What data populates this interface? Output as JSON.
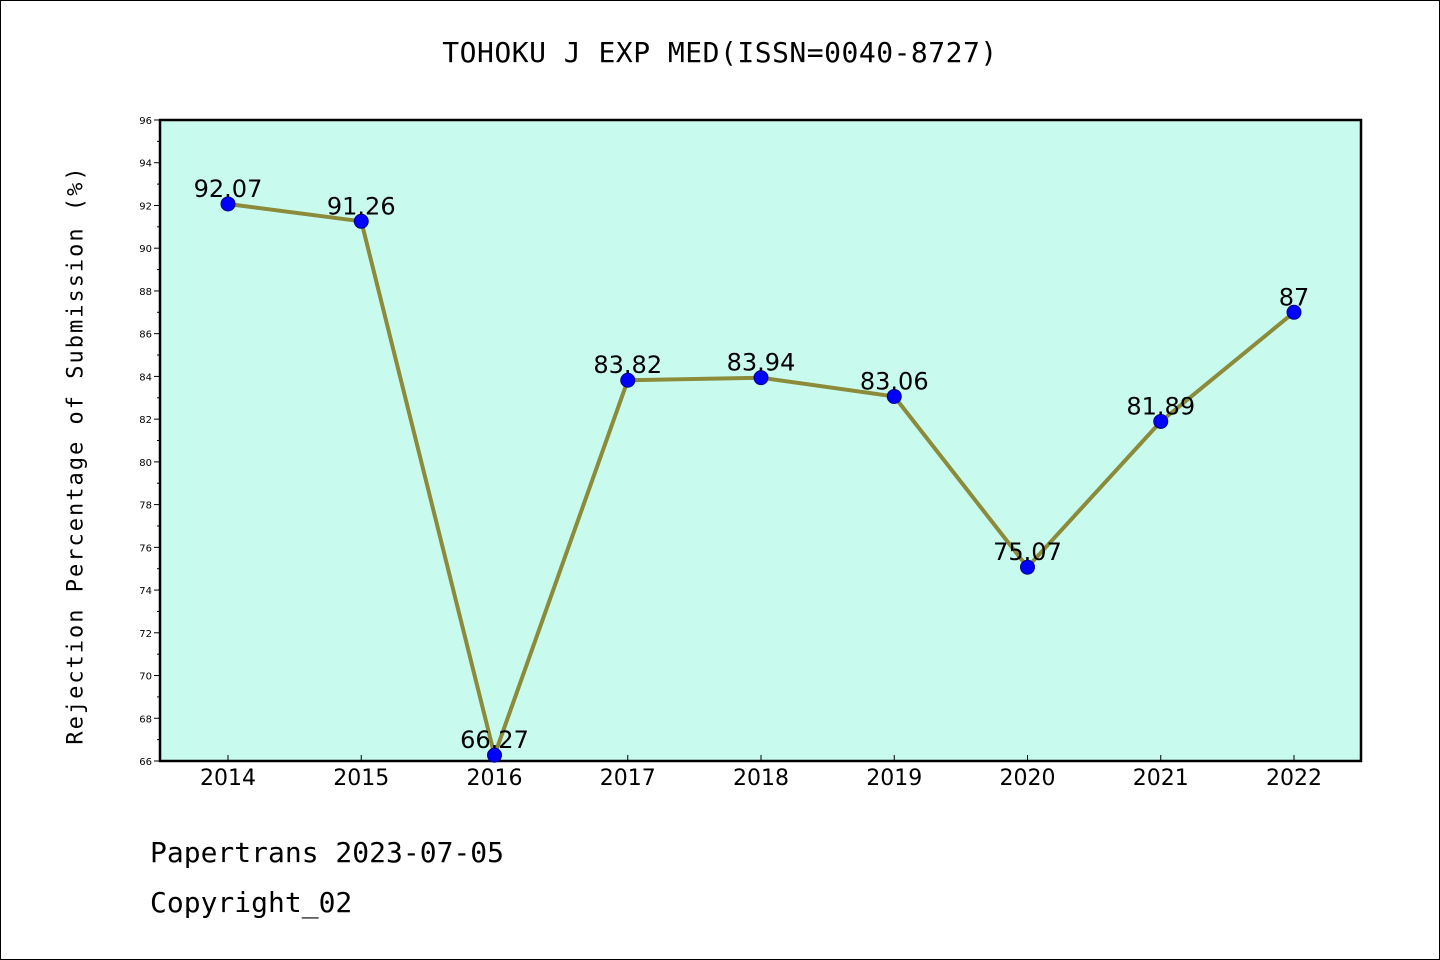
{
  "chart_data": {
    "type": "line",
    "title": "TOHOKU J EXP MED(ISSN=0040-8727)",
    "ylabel": "Rejection Percentage of Submission (%)",
    "xlabel": "",
    "categories": [
      "2014",
      "2015",
      "2016",
      "2017",
      "2018",
      "2019",
      "2020",
      "2021",
      "2022"
    ],
    "series": [
      {
        "values": [
          92.07,
          91.26,
          66.27,
          83.82,
          83.94,
          83.06,
          75.07,
          81.89,
          87
        ],
        "labels": [
          "92.07",
          "91.26",
          "66.27",
          "83.82",
          "83.94",
          "83.06",
          "75.07",
          "81.89",
          "87"
        ],
        "line_color": "#8B8B3A",
        "marker_color": "#0000FF"
      }
    ],
    "ylim": [
      66,
      96
    ],
    "yticks": [
      "66",
      "68",
      "70",
      "72",
      "74",
      "76",
      "78",
      "80",
      "82",
      "84",
      "86",
      "88",
      "90",
      "92",
      "94",
      "96"
    ],
    "grid": false,
    "plot_background": "#C8FBEE"
  },
  "footer": {
    "line1": "Papertrans 2023-07-05",
    "line2": "Copyright_02"
  }
}
